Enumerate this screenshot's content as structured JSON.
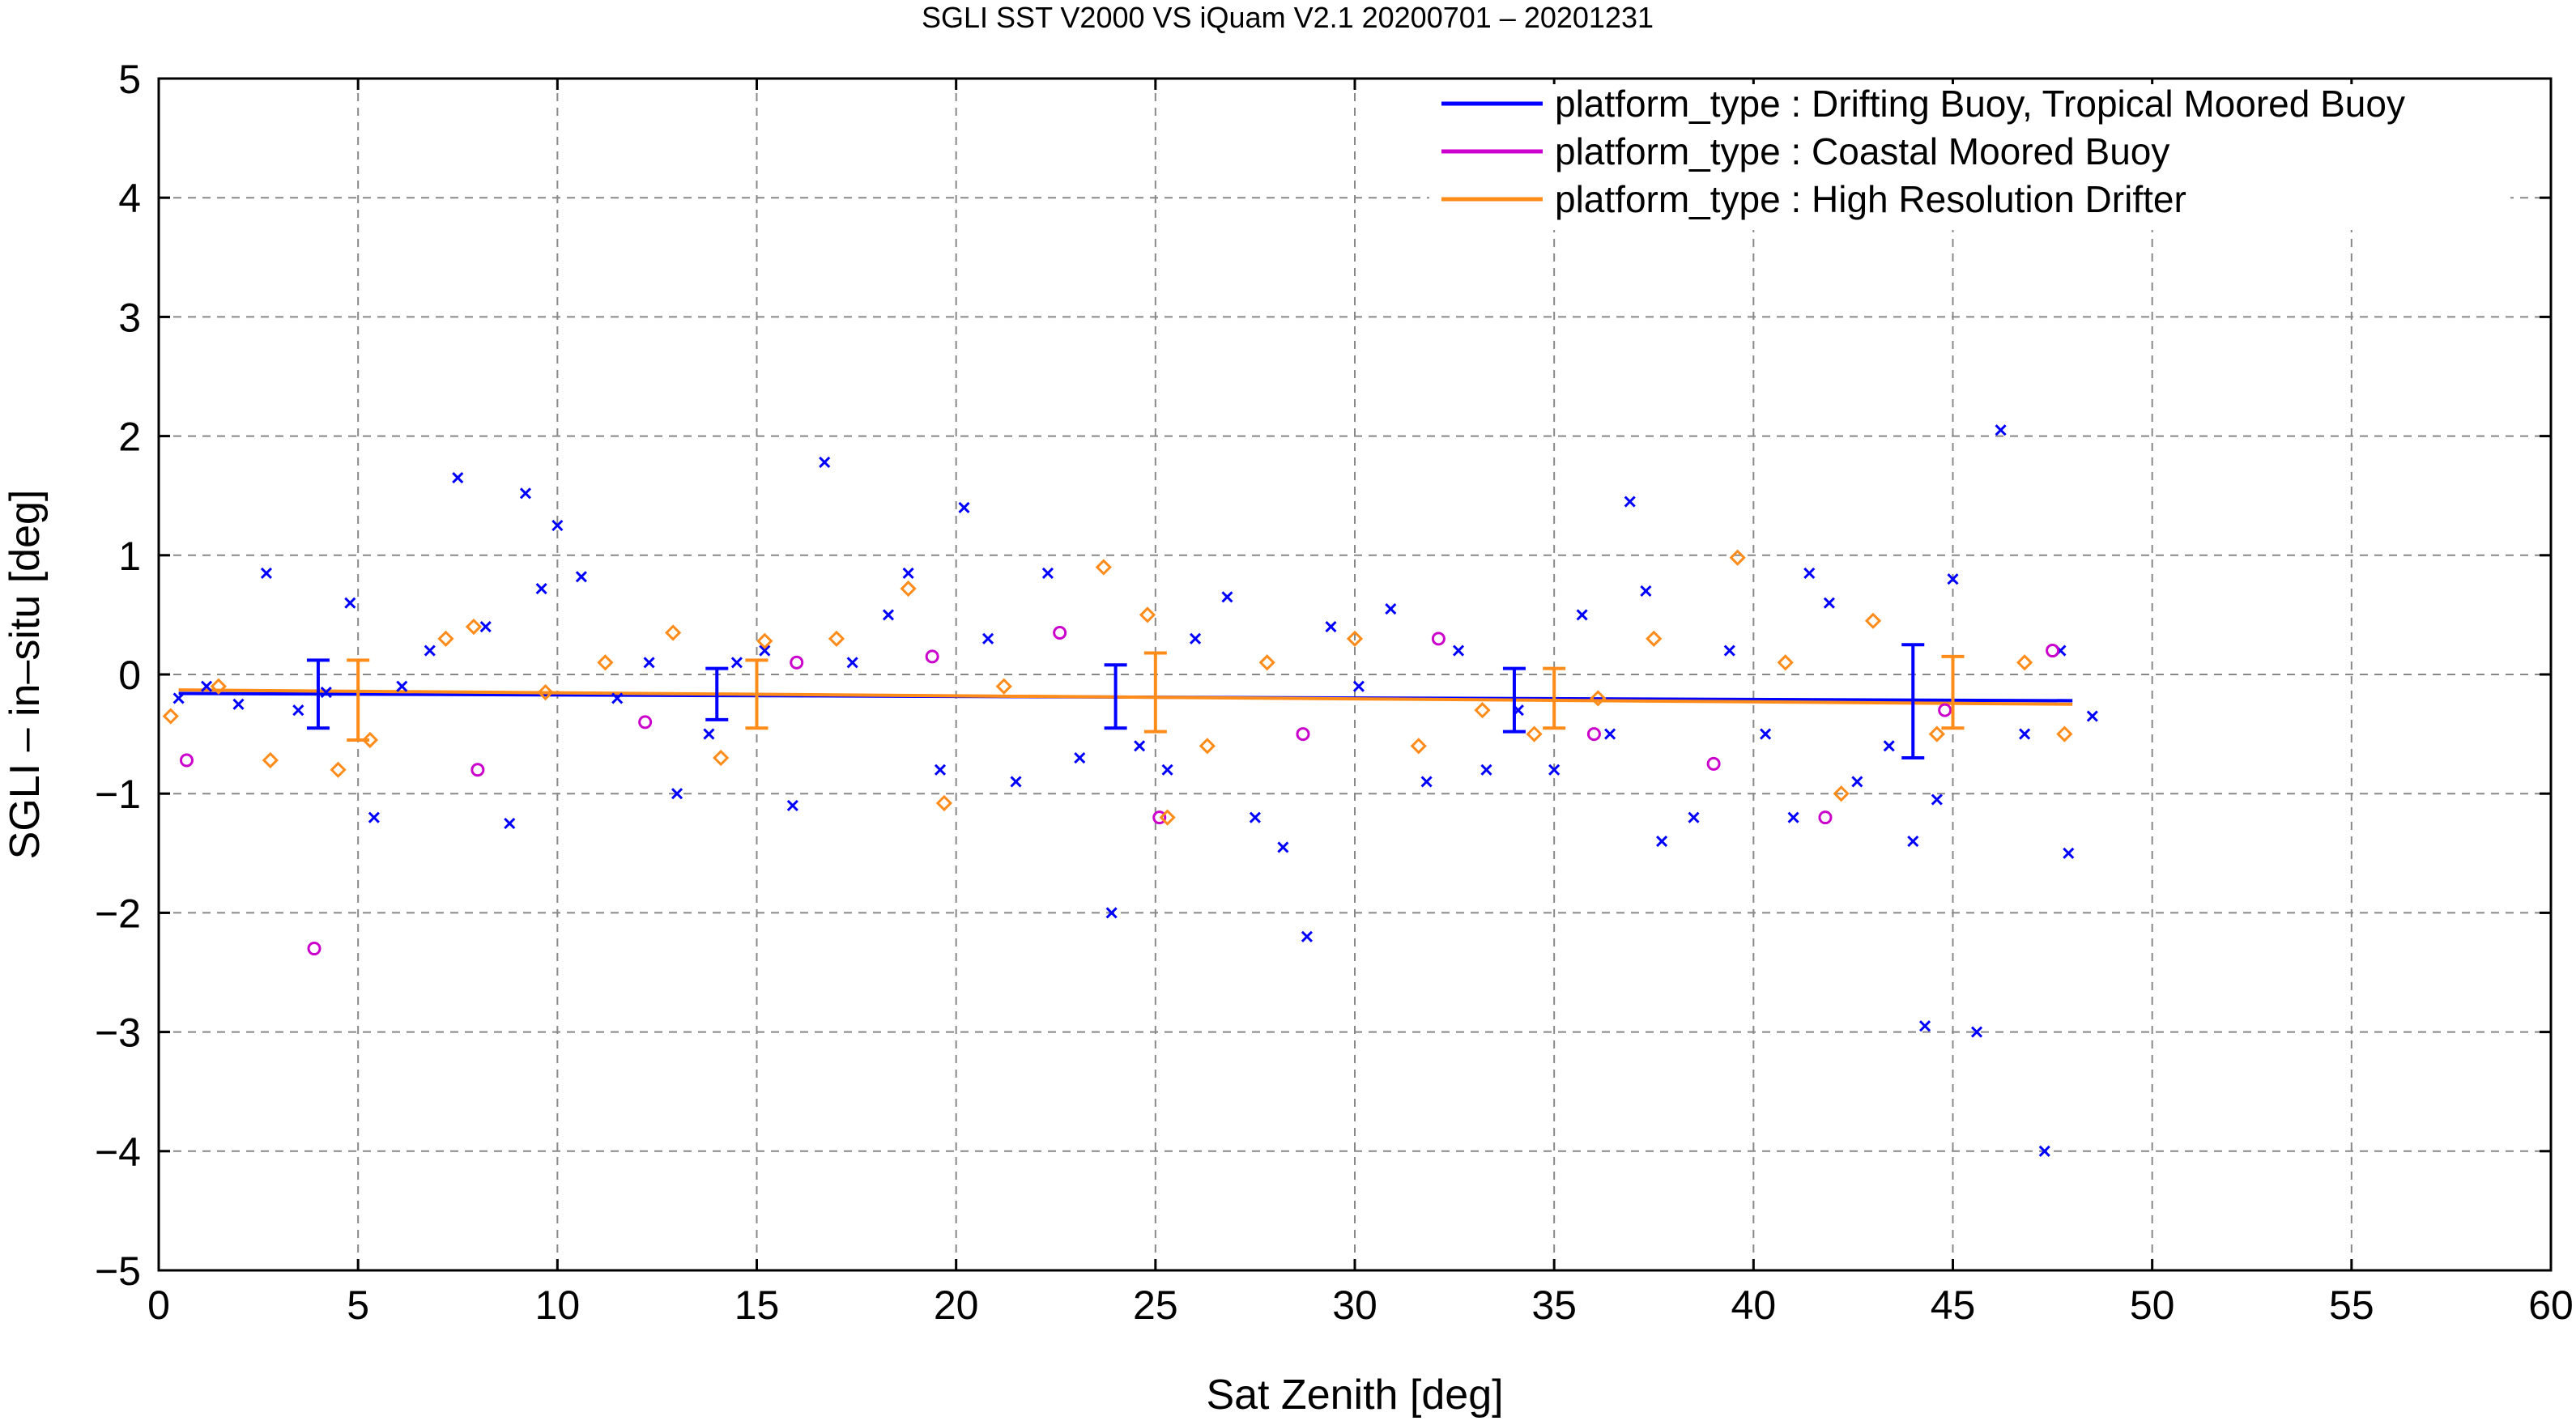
{
  "chart_data": {
    "type": "scatter",
    "title": "SGLI SST V2000 VS iQuam V2.1 20200701 – 20201231",
    "xlabel": "Sat Zenith [deg]",
    "ylabel": "SGLI – in–situ [deg]",
    "xlim": [
      0,
      60
    ],
    "ylim": [
      -5,
      5
    ],
    "xticks": [
      0,
      5,
      10,
      15,
      20,
      25,
      30,
      35,
      40,
      45,
      50,
      55,
      60
    ],
    "yticks": [
      -5,
      -4,
      -3,
      -2,
      -1,
      0,
      1,
      2,
      3,
      4,
      5
    ],
    "xtick_labels": [
      "0",
      "5",
      "10",
      "15",
      "20",
      "25",
      "30",
      "35",
      "40",
      "45",
      "50",
      "55",
      "60"
    ],
    "ytick_labels": [
      "−5",
      "−4",
      "−3",
      "−2",
      "−1",
      "0",
      "1",
      "2",
      "3",
      "4",
      "5"
    ],
    "grid": true,
    "legend_position": "top-right",
    "series": [
      {
        "name": "platform_type : Drifting Buoy, Tropical Moored Buoy",
        "color": "#0000ff",
        "marker": "x",
        "points": [
          [
            0.5,
            -0.2
          ],
          [
            1.2,
            -0.1
          ],
          [
            2.0,
            -0.25
          ],
          [
            2.7,
            0.85
          ],
          [
            3.5,
            -0.3
          ],
          [
            4.2,
            -0.15
          ],
          [
            4.8,
            0.6
          ],
          [
            5.4,
            -1.2
          ],
          [
            6.1,
            -0.1
          ],
          [
            6.8,
            0.2
          ],
          [
            7.5,
            1.65
          ],
          [
            8.2,
            0.4
          ],
          [
            8.8,
            -1.25
          ],
          [
            9.2,
            1.52
          ],
          [
            9.6,
            0.72
          ],
          [
            10.0,
            1.25
          ],
          [
            10.6,
            0.82
          ],
          [
            11.5,
            -0.2
          ],
          [
            12.3,
            0.1
          ],
          [
            13.0,
            -1.0
          ],
          [
            13.8,
            -0.5
          ],
          [
            14.5,
            0.1
          ],
          [
            15.2,
            0.2
          ],
          [
            15.9,
            -1.1
          ],
          [
            16.7,
            1.78
          ],
          [
            17.4,
            0.1
          ],
          [
            18.3,
            0.5
          ],
          [
            18.8,
            0.85
          ],
          [
            19.6,
            -0.8
          ],
          [
            20.2,
            1.4
          ],
          [
            20.8,
            0.3
          ],
          [
            21.5,
            -0.9
          ],
          [
            22.3,
            0.85
          ],
          [
            23.1,
            -0.7
          ],
          [
            23.9,
            -2.0
          ],
          [
            24.6,
            -0.6
          ],
          [
            25.3,
            -0.8
          ],
          [
            26.0,
            0.3
          ],
          [
            26.8,
            0.65
          ],
          [
            27.5,
            -1.2
          ],
          [
            28.2,
            -1.45
          ],
          [
            28.8,
            -2.2
          ],
          [
            29.4,
            0.4
          ],
          [
            30.1,
            -0.1
          ],
          [
            30.9,
            0.55
          ],
          [
            31.8,
            -0.9
          ],
          [
            32.6,
            0.2
          ],
          [
            33.3,
            -0.8
          ],
          [
            34.1,
            -0.3
          ],
          [
            35.0,
            -0.8
          ],
          [
            35.7,
            0.5
          ],
          [
            36.4,
            -0.5
          ],
          [
            36.9,
            1.45
          ],
          [
            37.3,
            0.7
          ],
          [
            37.7,
            -1.4
          ],
          [
            38.5,
            -1.2
          ],
          [
            39.4,
            0.2
          ],
          [
            40.3,
            -0.5
          ],
          [
            41.0,
            -1.2
          ],
          [
            41.4,
            0.85
          ],
          [
            41.9,
            0.6
          ],
          [
            42.6,
            -0.9
          ],
          [
            43.4,
            -0.6
          ],
          [
            44.0,
            -1.4
          ],
          [
            44.3,
            -2.95
          ],
          [
            44.6,
            -1.05
          ],
          [
            45.0,
            0.8
          ],
          [
            45.6,
            -3.0
          ],
          [
            46.2,
            2.05
          ],
          [
            46.8,
            -0.5
          ],
          [
            47.3,
            -4.0
          ],
          [
            47.7,
            0.2
          ],
          [
            47.9,
            -1.5
          ],
          [
            48.5,
            -0.35
          ]
        ]
      },
      {
        "name": "platform_type : Coastal Moored Buoy",
        "color": "#cc00cc",
        "marker": "circle",
        "points": [
          [
            0.7,
            -0.72
          ],
          [
            3.9,
            -2.3
          ],
          [
            8.0,
            -0.8
          ],
          [
            12.2,
            -0.4
          ],
          [
            16.0,
            0.1
          ],
          [
            19.4,
            0.15
          ],
          [
            22.6,
            0.35
          ],
          [
            25.1,
            -1.2
          ],
          [
            28.7,
            -0.5
          ],
          [
            32.1,
            0.3
          ],
          [
            36.0,
            -0.5
          ],
          [
            39.0,
            -0.75
          ],
          [
            41.8,
            -1.2
          ],
          [
            44.8,
            -0.3
          ],
          [
            47.5,
            0.2
          ]
        ]
      },
      {
        "name": "platform_type : High Resolution Drifter",
        "color": "#ff8c1a",
        "marker": "diamond",
        "points": [
          [
            0.3,
            -0.35
          ],
          [
            1.5,
            -0.1
          ],
          [
            2.8,
            -0.72
          ],
          [
            4.5,
            -0.8
          ],
          [
            5.3,
            -0.55
          ],
          [
            7.2,
            0.3
          ],
          [
            7.9,
            0.4
          ],
          [
            9.7,
            -0.15
          ],
          [
            11.2,
            0.1
          ],
          [
            12.9,
            0.35
          ],
          [
            14.1,
            -0.7
          ],
          [
            15.2,
            0.28
          ],
          [
            17.0,
            0.3
          ],
          [
            18.8,
            0.72
          ],
          [
            19.7,
            -1.08
          ],
          [
            21.2,
            -0.1
          ],
          [
            23.7,
            0.9
          ],
          [
            24.8,
            0.5
          ],
          [
            25.3,
            -1.2
          ],
          [
            26.3,
            -0.6
          ],
          [
            27.8,
            0.1
          ],
          [
            30.0,
            0.3
          ],
          [
            31.6,
            -0.6
          ],
          [
            33.2,
            -0.3
          ],
          [
            34.5,
            -0.5
          ],
          [
            36.1,
            -0.2
          ],
          [
            37.5,
            0.3
          ],
          [
            39.6,
            0.98
          ],
          [
            40.8,
            0.1
          ],
          [
            42.2,
            -1.0
          ],
          [
            43.0,
            0.45
          ],
          [
            44.6,
            -0.5
          ],
          [
            46.8,
            0.1
          ],
          [
            47.8,
            -0.5
          ]
        ]
      }
    ],
    "error_bars": [
      {
        "series": "platform_type : Drifting Buoy, Tropical Moored Buoy",
        "color": "#0000ff",
        "points": [
          [
            4.0,
            -0.15,
            -0.45,
            0.12
          ],
          [
            14.0,
            -0.2,
            -0.38,
            0.05
          ],
          [
            24.0,
            -0.18,
            -0.45,
            0.08
          ],
          [
            34.0,
            -0.22,
            -0.48,
            0.05
          ],
          [
            44.0,
            -0.22,
            -0.7,
            0.25
          ]
        ]
      },
      {
        "series": "platform_type : High Resolution Drifter",
        "color": "#ff8c1a",
        "points": [
          [
            5.0,
            -0.12,
            -0.55,
            0.12
          ],
          [
            15.0,
            -0.17,
            -0.45,
            0.12
          ],
          [
            25.0,
            -0.2,
            -0.48,
            0.18
          ],
          [
            35.0,
            -0.2,
            -0.45,
            0.05
          ],
          [
            45.0,
            -0.25,
            -0.45,
            0.15
          ]
        ]
      }
    ],
    "mean_lines": [
      {
        "series": "platform_type : Drifting Buoy, Tropical Moored Buoy",
        "color": "#0000ff",
        "points": [
          [
            0.5,
            -0.16
          ],
          [
            48.0,
            -0.22
          ]
        ]
      },
      {
        "series": "platform_type : High Resolution Drifter",
        "color": "#ff8c1a",
        "points": [
          [
            0.5,
            -0.13
          ],
          [
            48.0,
            -0.25
          ]
        ]
      }
    ]
  }
}
